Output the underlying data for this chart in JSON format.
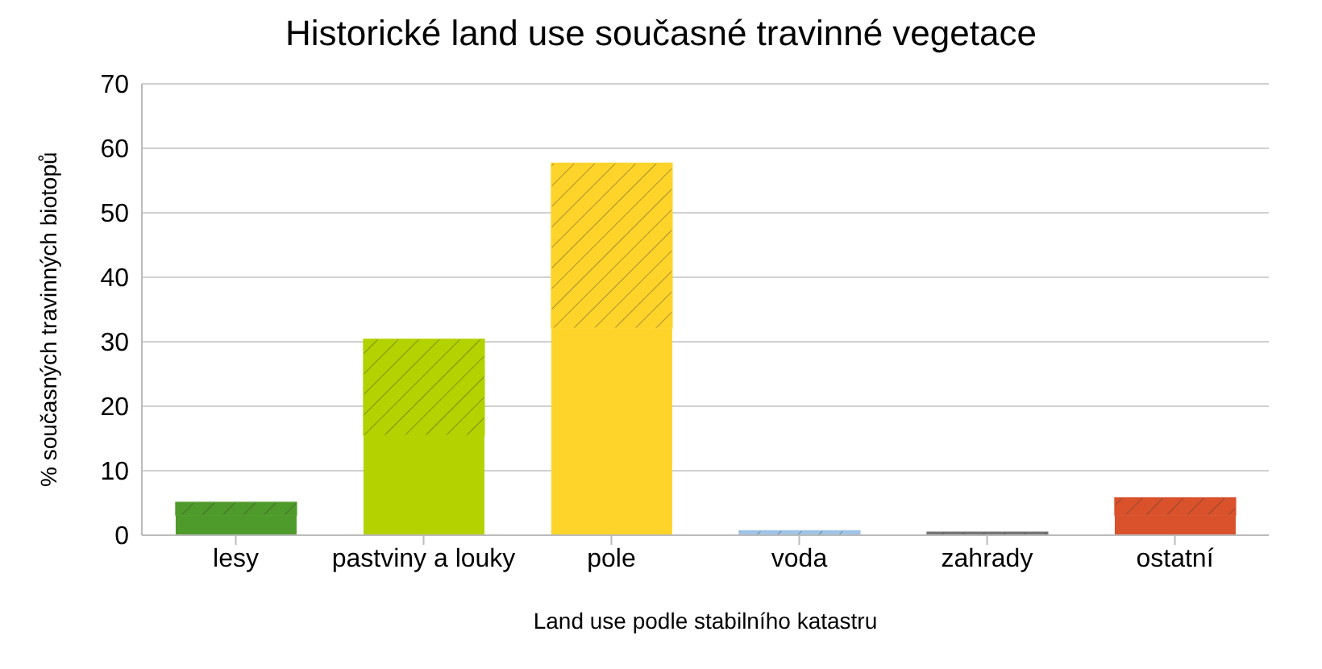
{
  "chart_data": {
    "type": "bar",
    "title": "Historické land use současné travinné vegetace",
    "xlabel": "Land use podle stabilního katastru",
    "ylabel": "% současných travinných biotopů",
    "categories": [
      "lesy",
      "pastviny a louky",
      "pole",
      "voda",
      "zahrady",
      "ostatní"
    ],
    "stacked": true,
    "series": [
      {
        "colors": [
          "#4e9a2a",
          "#b3d200",
          "#ffd42a",
          "#9fc4e7",
          "#777777",
          "#d9522c"
        ],
        "values": [
          3.1,
          15.5,
          32.1,
          null,
          null,
          3.1
        ]
      },
      {
        "colors": [
          "#4e9a2a",
          "#b3d200",
          "#ffd42a",
          "#9fc4e7",
          "#777777",
          "#d9522c"
        ],
        "values": [
          2.0,
          14.9,
          25.6,
          0.7,
          0.5,
          2.7
        ]
      }
    ],
    "ylim": [
      0,
      70
    ],
    "yticks": [
      0,
      10,
      20,
      30,
      40,
      50,
      60,
      70
    ],
    "grid": "y",
    "legend": false
  }
}
